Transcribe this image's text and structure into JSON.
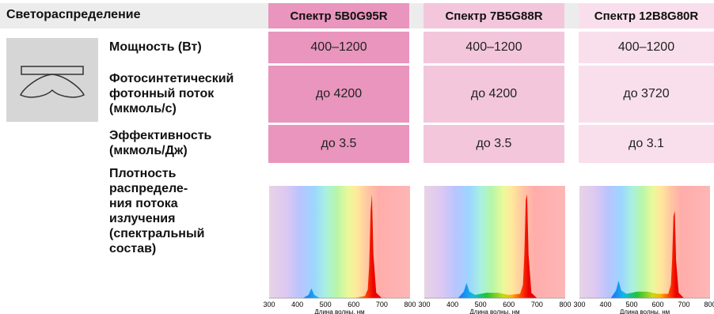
{
  "header": {
    "left_title": "Светораспределение",
    "columns": [
      "Спектр 5B0G95R",
      "Спектр 7B5G88R",
      "Спектр 12B8G80R"
    ]
  },
  "rows": [
    {
      "label": "Мощность (Вт)",
      "values": [
        "400–1200",
        "400–1200",
        "400–1200"
      ]
    },
    {
      "label_lines": [
        "Фотосинтетический",
        "фотонный поток",
        "(мкмоль/с)"
      ],
      "values": [
        "до 4200",
        "до 4200",
        "до 3720"
      ]
    },
    {
      "label_lines": [
        "Эффективность",
        "(мкмоль/Дж)"
      ],
      "values": [
        "до 3.5",
        "до 3.5",
        "до 3.1"
      ]
    }
  ],
  "spectrum_row": {
    "label_lines": [
      "Плотность",
      "распределе-",
      "ния потока",
      "излучения",
      "(спектральный",
      "состав)"
    ]
  },
  "colors": {
    "col1": "#e995bd",
    "col2": "#f3c6dc",
    "col3": "#f9dfeb",
    "header_band": "#ececec"
  },
  "chart_data": [
    {
      "type": "area",
      "xlabel": "Длина волны, нм",
      "x_ticks": [
        "300",
        "400",
        "500",
        "600",
        "700",
        "800"
      ],
      "xlim": [
        300,
        800
      ],
      "series": [
        {
          "x": [
            300,
            420,
            440,
            450,
            460,
            480,
            520,
            600,
            640,
            650,
            655,
            660,
            665,
            670,
            680,
            700,
            800
          ],
          "values": [
            0,
            0,
            0.03,
            0.09,
            0.03,
            0,
            0,
            0,
            0.02,
            0.08,
            0.3,
            0.8,
            0.95,
            0.4,
            0.05,
            0,
            0
          ]
        }
      ]
    },
    {
      "type": "area",
      "xlabel": "Длина волны, нм",
      "x_ticks": [
        "300",
        "400",
        "500",
        "600",
        "700",
        "800"
      ],
      "xlim": [
        300,
        800
      ],
      "series": [
        {
          "x": [
            300,
            420,
            440,
            450,
            460,
            480,
            520,
            560,
            600,
            640,
            650,
            655,
            660,
            665,
            670,
            680,
            700,
            800
          ],
          "values": [
            0,
            0,
            0.06,
            0.14,
            0.06,
            0.03,
            0.05,
            0.05,
            0.03,
            0.04,
            0.12,
            0.4,
            0.9,
            0.95,
            0.4,
            0.05,
            0,
            0
          ]
        }
      ]
    },
    {
      "type": "area",
      "xlabel": "Длина волны, нм",
      "x_ticks": [
        "300",
        "400",
        "500",
        "600",
        "700",
        "800"
      ],
      "xlim": [
        300,
        800
      ],
      "series": [
        {
          "x": [
            300,
            420,
            440,
            450,
            460,
            480,
            520,
            560,
            600,
            640,
            650,
            655,
            660,
            665,
            670,
            680,
            700,
            800
          ],
          "values": [
            0,
            0,
            0.07,
            0.16,
            0.07,
            0.04,
            0.06,
            0.06,
            0.04,
            0.04,
            0.12,
            0.35,
            0.75,
            0.8,
            0.35,
            0.05,
            0,
            0
          ]
        }
      ]
    }
  ]
}
